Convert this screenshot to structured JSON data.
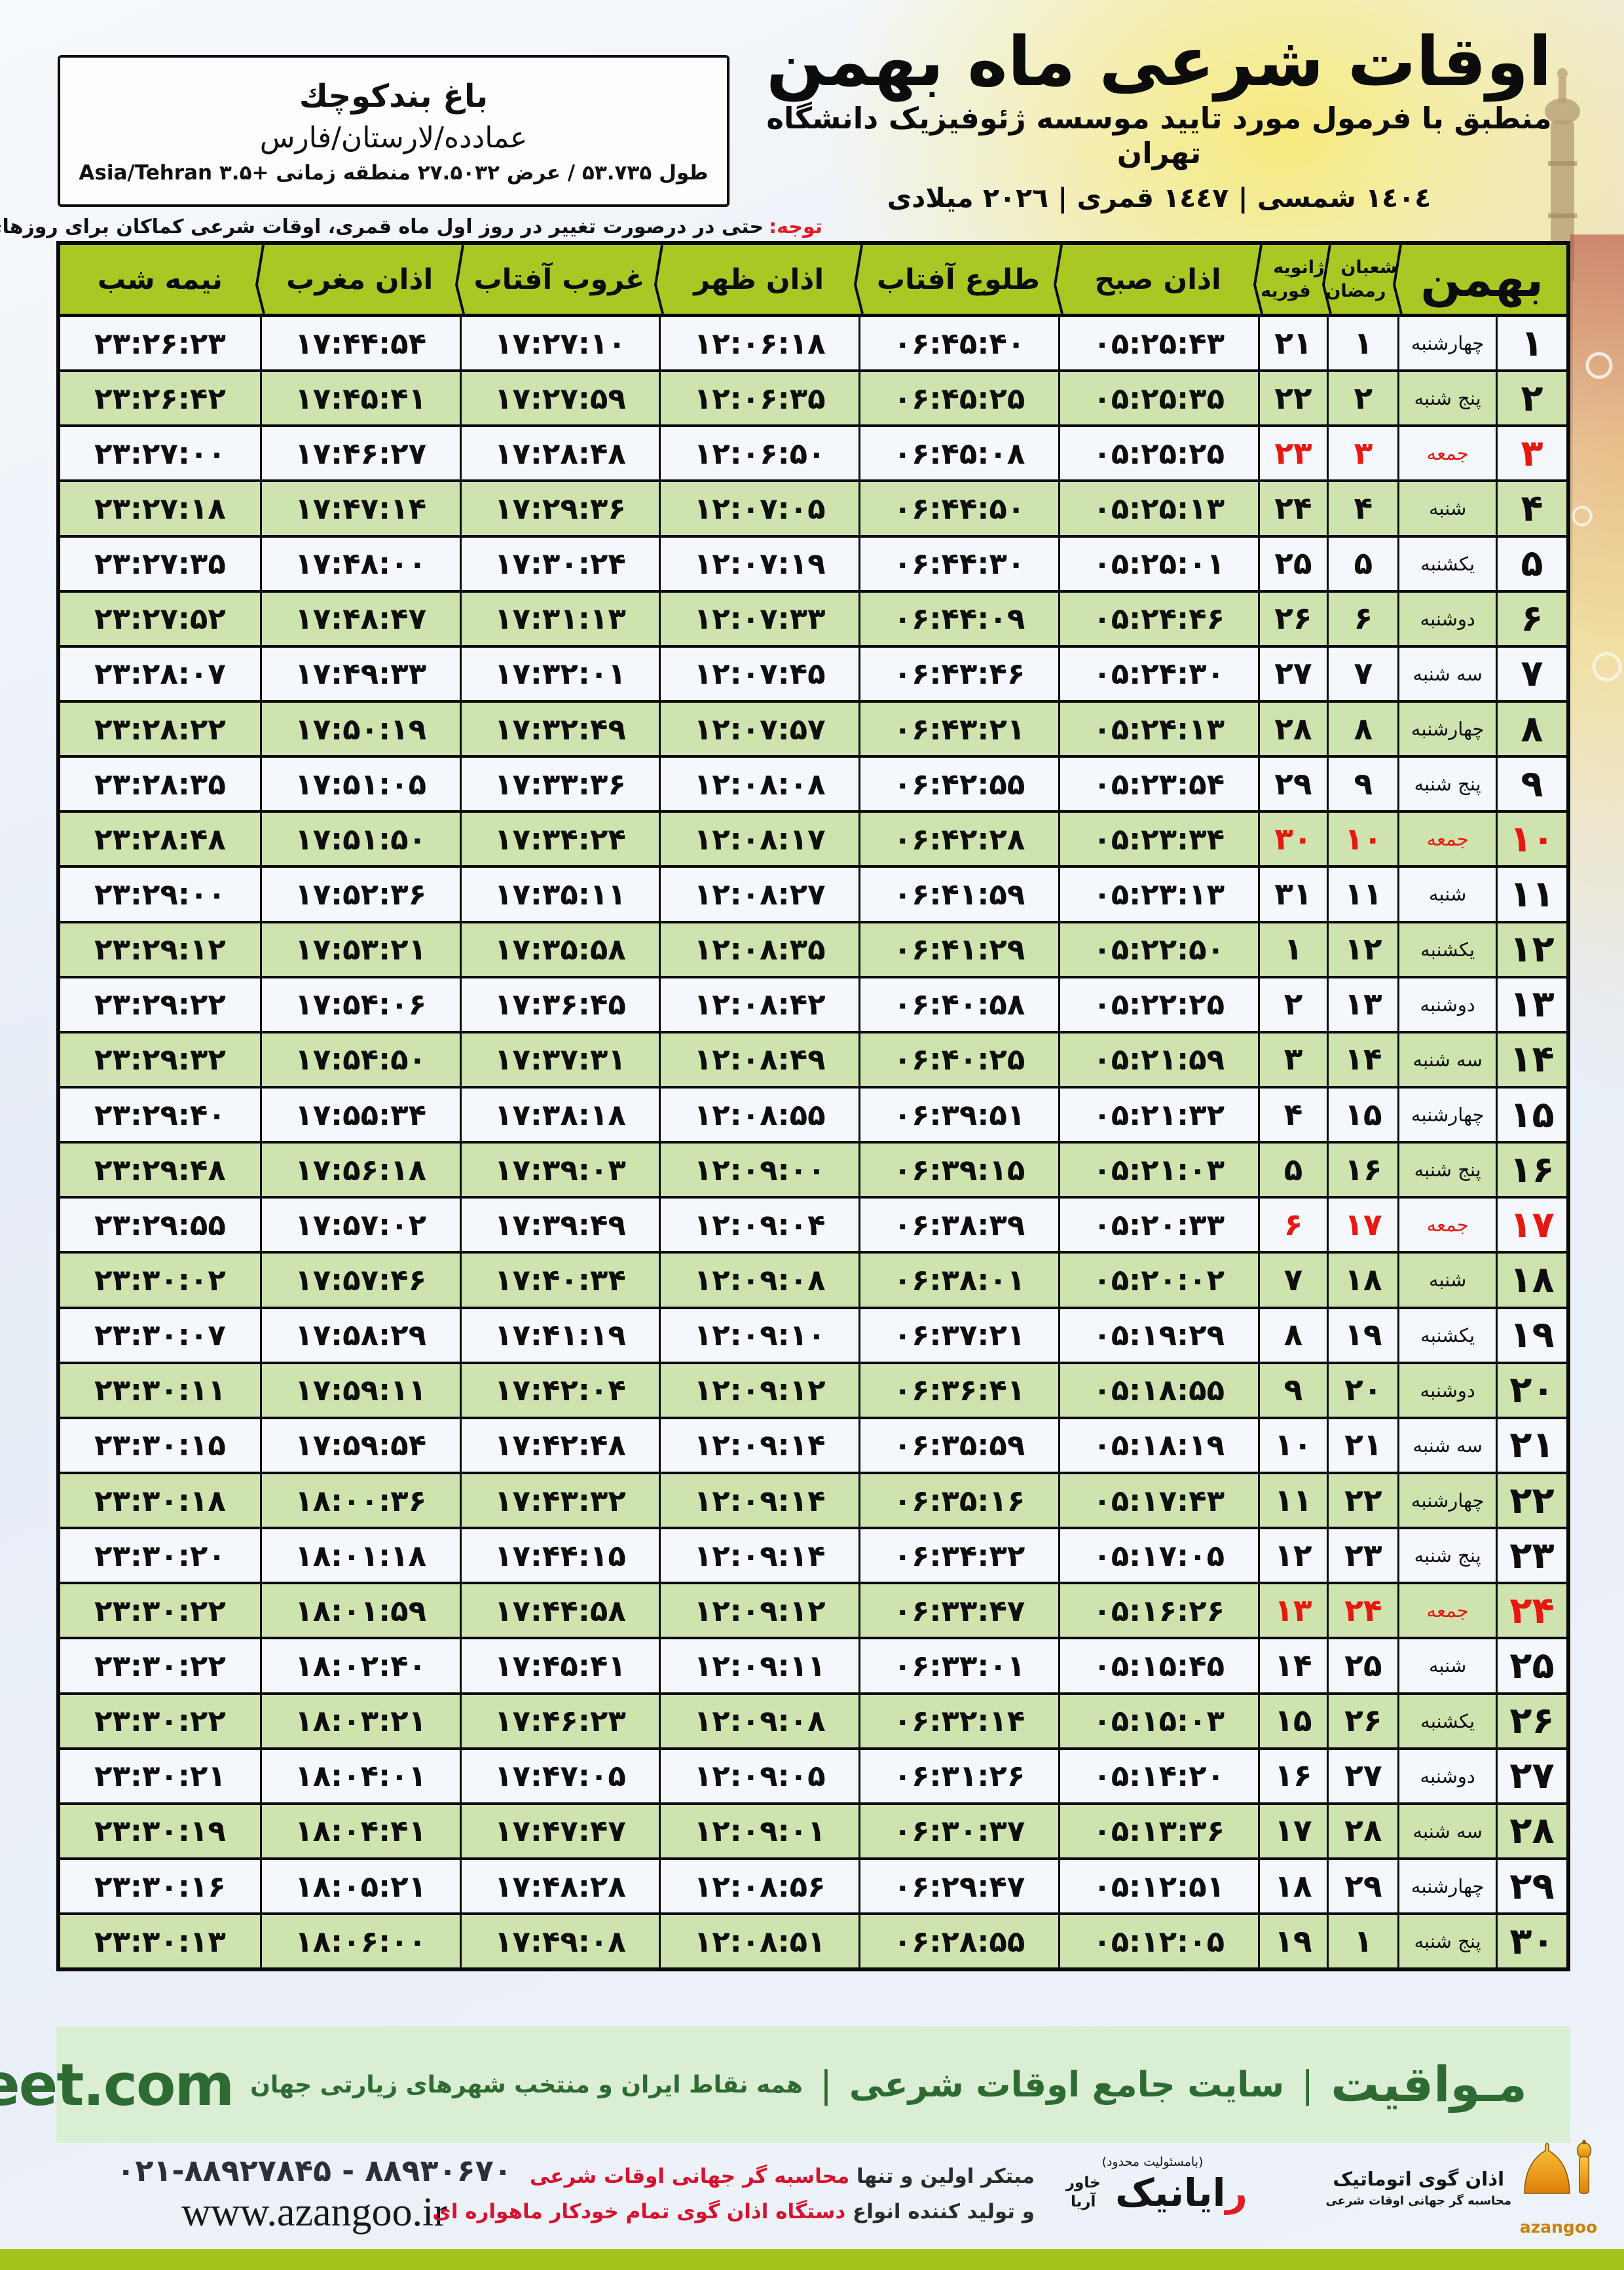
{
  "location_box": {
    "name": "باغ بندكوچك",
    "region": "عمادده/لارستان/فارس",
    "coords": "طول ۵۳.۷۳۵ / عرض ۲۷.۵۰۳۲ منطقه زمانی +۳.۵ Asia/Tehran"
  },
  "header": {
    "title": "اوقات شرعی ماه بهمن",
    "subtitle": "منطبق با فرمول مورد تایید موسسه ژئوفیزیک دانشگاه تهران",
    "dates": "١٤٠٤ شمسی | ١٤٤٧ قمری | ٢٠٢٦ میلادی"
  },
  "note": {
    "label": "توجه:",
    "text": "حتی در درصورت تغییر در روز اول ماه قمری، اوقات شرعی کماکان برای روزهای شمسی و میلادی معتبر است."
  },
  "table": {
    "month_header": "بهمن",
    "lunar_header_top": "شعبان",
    "lunar_header_bottom": "رمضان",
    "greg_header_top": "ژانویه",
    "greg_header_bottom": "فوریه",
    "time_headers": [
      "اذان صبح",
      "طلوع آفتاب",
      "اذان ظهر",
      "غروب آفتاب",
      "اذان مغرب",
      "نیمه شب"
    ],
    "time_keys": [
      "azan-sobh",
      "tolu-aftab",
      "azan-zohr",
      "ghorub-aftab",
      "azan-maghreb",
      "nime-shab"
    ],
    "rows": [
      {
        "day": 1,
        "weekday": "چهارشنبه",
        "lunar": 1,
        "greg": 21,
        "friday": false,
        "times": [
          "05:25:43",
          "06:45:40",
          "12:06:18",
          "17:27:10",
          "17:44:54",
          "23:26:23"
        ]
      },
      {
        "day": 2,
        "weekday": "پنج شنبه",
        "lunar": 2,
        "greg": 22,
        "friday": false,
        "times": [
          "05:25:35",
          "06:45:25",
          "12:06:35",
          "17:27:59",
          "17:45:41",
          "23:26:42"
        ]
      },
      {
        "day": 3,
        "weekday": "جمعه",
        "lunar": 3,
        "greg": 23,
        "friday": true,
        "times": [
          "05:25:25",
          "06:45:08",
          "12:06:50",
          "17:28:48",
          "17:46:27",
          "23:27:00"
        ]
      },
      {
        "day": 4,
        "weekday": "شنبه",
        "lunar": 4,
        "greg": 24,
        "friday": false,
        "times": [
          "05:25:13",
          "06:44:50",
          "12:07:05",
          "17:29:36",
          "17:47:14",
          "23:27:18"
        ]
      },
      {
        "day": 5,
        "weekday": "یکشنبه",
        "lunar": 5,
        "greg": 25,
        "friday": false,
        "times": [
          "05:25:01",
          "06:44:30",
          "12:07:19",
          "17:30:24",
          "17:48:00",
          "23:27:35"
        ]
      },
      {
        "day": 6,
        "weekday": "دوشنبه",
        "lunar": 6,
        "greg": 26,
        "friday": false,
        "times": [
          "05:24:46",
          "06:44:09",
          "12:07:33",
          "17:31:13",
          "17:48:47",
          "23:27:52"
        ]
      },
      {
        "day": 7,
        "weekday": "سه شنبه",
        "lunar": 7,
        "greg": 27,
        "friday": false,
        "times": [
          "05:24:30",
          "06:43:46",
          "12:07:45",
          "17:32:01",
          "17:49:33",
          "23:28:07"
        ]
      },
      {
        "day": 8,
        "weekday": "چهارشنبه",
        "lunar": 8,
        "greg": 28,
        "friday": false,
        "times": [
          "05:24:13",
          "06:43:21",
          "12:07:57",
          "17:32:49",
          "17:50:19",
          "23:28:22"
        ]
      },
      {
        "day": 9,
        "weekday": "پنج شنبه",
        "lunar": 9,
        "greg": 29,
        "friday": false,
        "times": [
          "05:23:54",
          "06:42:55",
          "12:08:08",
          "17:33:36",
          "17:51:05",
          "23:28:35"
        ]
      },
      {
        "day": 10,
        "weekday": "جمعه",
        "lunar": 10,
        "greg": 30,
        "friday": true,
        "times": [
          "05:23:34",
          "06:42:28",
          "12:08:17",
          "17:34:24",
          "17:51:50",
          "23:28:48"
        ]
      },
      {
        "day": 11,
        "weekday": "شنبه",
        "lunar": 11,
        "greg": 31,
        "friday": false,
        "times": [
          "05:23:13",
          "06:41:59",
          "12:08:27",
          "17:35:11",
          "17:52:36",
          "23:29:00"
        ]
      },
      {
        "day": 12,
        "weekday": "یکشنبه",
        "lunar": 12,
        "greg": 1,
        "friday": false,
        "times": [
          "05:22:50",
          "06:41:29",
          "12:08:35",
          "17:35:58",
          "17:53:21",
          "23:29:12"
        ]
      },
      {
        "day": 13,
        "weekday": "دوشنبه",
        "lunar": 13,
        "greg": 2,
        "friday": false,
        "times": [
          "05:22:25",
          "06:40:58",
          "12:08:42",
          "17:36:45",
          "17:54:06",
          "23:29:22"
        ]
      },
      {
        "day": 14,
        "weekday": "سه شنبه",
        "lunar": 14,
        "greg": 3,
        "friday": false,
        "times": [
          "05:21:59",
          "06:40:25",
          "12:08:49",
          "17:37:31",
          "17:54:50",
          "23:29:32"
        ]
      },
      {
        "day": 15,
        "weekday": "چهارشنبه",
        "lunar": 15,
        "greg": 4,
        "friday": false,
        "times": [
          "05:21:32",
          "06:39:51",
          "12:08:55",
          "17:38:18",
          "17:55:34",
          "23:29:40"
        ]
      },
      {
        "day": 16,
        "weekday": "پنج شنبه",
        "lunar": 16,
        "greg": 5,
        "friday": false,
        "times": [
          "05:21:03",
          "06:39:15",
          "12:09:00",
          "17:39:03",
          "17:56:18",
          "23:29:48"
        ]
      },
      {
        "day": 17,
        "weekday": "جمعه",
        "lunar": 17,
        "greg": 6,
        "friday": true,
        "times": [
          "05:20:33",
          "06:38:39",
          "12:09:04",
          "17:39:49",
          "17:57:02",
          "23:29:55"
        ]
      },
      {
        "day": 18,
        "weekday": "شنبه",
        "lunar": 18,
        "greg": 7,
        "friday": false,
        "times": [
          "05:20:02",
          "06:38:01",
          "12:09:08",
          "17:40:34",
          "17:57:46",
          "23:30:02"
        ]
      },
      {
        "day": 19,
        "weekday": "یکشنبه",
        "lunar": 19,
        "greg": 8,
        "friday": false,
        "times": [
          "05:19:29",
          "06:37:21",
          "12:09:10",
          "17:41:19",
          "17:58:29",
          "23:30:07"
        ]
      },
      {
        "day": 20,
        "weekday": "دوشنبه",
        "lunar": 20,
        "greg": 9,
        "friday": false,
        "times": [
          "05:18:55",
          "06:36:41",
          "12:09:12",
          "17:42:04",
          "17:59:11",
          "23:30:11"
        ]
      },
      {
        "day": 21,
        "weekday": "سه شنبه",
        "lunar": 21,
        "greg": 10,
        "friday": false,
        "times": [
          "05:18:19",
          "06:35:59",
          "12:09:14",
          "17:42:48",
          "17:59:54",
          "23:30:15"
        ]
      },
      {
        "day": 22,
        "weekday": "چهارشنبه",
        "lunar": 22,
        "greg": 11,
        "friday": false,
        "times": [
          "05:17:43",
          "06:35:16",
          "12:09:14",
          "17:43:32",
          "18:00:36",
          "23:30:18"
        ]
      },
      {
        "day": 23,
        "weekday": "پنج شنبه",
        "lunar": 23,
        "greg": 12,
        "friday": false,
        "times": [
          "05:17:05",
          "06:34:32",
          "12:09:14",
          "17:44:15",
          "18:01:18",
          "23:30:20"
        ]
      },
      {
        "day": 24,
        "weekday": "جمعه",
        "lunar": 24,
        "greg": 13,
        "friday": true,
        "times": [
          "05:16:26",
          "06:33:47",
          "12:09:12",
          "17:44:58",
          "18:01:59",
          "23:30:22"
        ]
      },
      {
        "day": 25,
        "weekday": "شنبه",
        "lunar": 25,
        "greg": 14,
        "friday": false,
        "times": [
          "05:15:45",
          "06:33:01",
          "12:09:11",
          "17:45:41",
          "18:02:40",
          "23:30:22"
        ]
      },
      {
        "day": 26,
        "weekday": "یکشنبه",
        "lunar": 26,
        "greg": 15,
        "friday": false,
        "times": [
          "05:15:03",
          "06:32:14",
          "12:09:08",
          "17:46:23",
          "18:03:21",
          "23:30:22"
        ]
      },
      {
        "day": 27,
        "weekday": "دوشنبه",
        "lunar": 27,
        "greg": 16,
        "friday": false,
        "times": [
          "05:14:20",
          "06:31:26",
          "12:09:05",
          "17:47:05",
          "18:04:01",
          "23:30:21"
        ]
      },
      {
        "day": 28,
        "weekday": "سه شنبه",
        "lunar": 28,
        "greg": 17,
        "friday": false,
        "times": [
          "05:13:36",
          "06:30:37",
          "12:09:01",
          "17:47:47",
          "18:04:41",
          "23:30:19"
        ]
      },
      {
        "day": 29,
        "weekday": "چهارشنبه",
        "lunar": 29,
        "greg": 18,
        "friday": false,
        "times": [
          "05:12:51",
          "06:29:47",
          "12:08:56",
          "17:48:28",
          "18:05:21",
          "23:30:16"
        ]
      },
      {
        "day": 30,
        "weekday": "پنج شنبه",
        "lunar": 1,
        "greg": 19,
        "friday": false,
        "times": [
          "05:12:05",
          "06:28:55",
          "12:08:51",
          "17:49:08",
          "18:06:00",
          "23:30:13"
        ]
      }
    ]
  },
  "band": {
    "brand": "مـواقیت",
    "sep": "|",
    "desc1": "سایت جامع اوقات شرعی",
    "desc2": "همه نقاط ایران و منتخب شهرهای زیارتی جهان",
    "url": "mavaqeet.com"
  },
  "bottom": {
    "phone": "021-88927845 - 88930670",
    "site": "www.azangoo.ir",
    "line1_black": "مبتکر اولین و تنها ",
    "line1_red": "محاسبه گر جهانی اوقات شرعی",
    "line2_black": "و تولید کننده انواع ",
    "line2_red": "دستگاه اذان گوی تمام خودکار ماهواره ای",
    "rayanik_note": "(بامسئولیت محدود)",
    "rayanik_initial": "ر",
    "rayanik_rest": "ایانیک",
    "rayanik_sub": "خاور آریا",
    "azangoo_title": "اذان گوی اتوماتیک",
    "azangoo_sub": "محاسبه گر جهانی اوقات شرعی",
    "azangoo_brand": "azangoo"
  },
  "colors": {
    "header_green": "#a9c823",
    "row_green": "#cfe3af",
    "row_white": "#f4f7fb",
    "friday_red": "#e81710",
    "note_red": "#e11d26",
    "band_bg": "#daeed4",
    "band_text": "#2e6b33",
    "bottom_bar": "#a3c41b"
  }
}
